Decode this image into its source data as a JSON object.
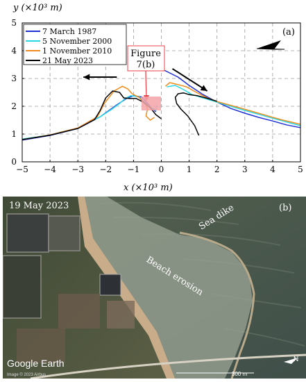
{
  "chart_data": {
    "type": "line",
    "xlabel": "x (×10³ m)",
    "ylabel": "y (×10³ m)",
    "xlim": [
      -5,
      5
    ],
    "ylim": [
      0,
      5
    ],
    "xticks": [
      -5,
      -4,
      -3,
      -2,
      -1,
      0,
      1,
      2,
      3,
      4,
      5
    ],
    "yticks": [
      0,
      1,
      2,
      3,
      4,
      5
    ],
    "xtick_labels": [
      "−5",
      "−4",
      "−3",
      "−2",
      "−1",
      "0",
      "1",
      "2",
      "3",
      "4",
      "5"
    ],
    "ytick_labels": [
      "0",
      "1",
      "2",
      "3",
      "4",
      "5"
    ],
    "grid": true,
    "legend_position": "top-left",
    "panel_label": "(a)",
    "annotation": {
      "text_line1": "Figure",
      "text_line2": "7(b)",
      "target_x": -0.3,
      "target_y": 2.0,
      "box_color": "#f4a3a8"
    },
    "series": [
      {
        "name": "7 March 1987",
        "color": "#1f2fd6",
        "segments": [
          [
            [
              -5,
              0.78
            ],
            [
              -4,
              0.95
            ],
            [
              -3,
              1.2
            ],
            [
              -2.2,
              1.62
            ],
            [
              -1.6,
              2.05
            ],
            [
              -1.25,
              2.28
            ],
            [
              -1,
              2.38
            ],
            [
              -0.7,
              2.33
            ],
            [
              -0.45,
              2.05
            ],
            [
              -0.2,
              1.8
            ]
          ],
          [
            [
              0.1,
              3.3
            ],
            [
              0.6,
              3.05
            ],
            [
              1,
              2.75
            ],
            [
              1.5,
              2.42
            ],
            [
              2,
              2.15
            ],
            [
              2.5,
              1.92
            ],
            [
              3,
              1.75
            ],
            [
              3.5,
              1.6
            ],
            [
              4,
              1.47
            ],
            [
              4.5,
              1.33
            ],
            [
              5,
              1.23
            ]
          ]
        ]
      },
      {
        "name": "5 November 2000",
        "color": "#27d9e4",
        "segments": [
          [
            [
              -5,
              0.82
            ],
            [
              -4,
              0.97
            ],
            [
              -3,
              1.22
            ],
            [
              -2.2,
              1.62
            ],
            [
              -1.8,
              1.88
            ],
            [
              -1.5,
              2.1
            ],
            [
              -1.3,
              2.28
            ],
            [
              -1.1,
              2.38
            ],
            [
              -0.8,
              2.34
            ],
            [
              -0.55,
              2.1
            ],
            [
              -0.35,
              1.95
            ],
            [
              -0.2,
              1.85
            ],
            [
              -0.15,
              2.05
            ]
          ],
          [
            [
              0.2,
              2.7
            ],
            [
              0.5,
              2.75
            ],
            [
              0.8,
              2.6
            ],
            [
              1.1,
              2.42
            ],
            [
              1.5,
              2.3
            ],
            [
              2,
              2.15
            ],
            [
              3,
              1.85
            ],
            [
              4,
              1.57
            ],
            [
              5,
              1.3
            ]
          ]
        ]
      },
      {
        "name": "1 November 2010",
        "color": "#f08c1d",
        "segments": [
          [
            [
              -5,
              0.8
            ],
            [
              -4,
              0.97
            ],
            [
              -3,
              1.22
            ],
            [
              -2.3,
              1.62
            ],
            [
              -2.05,
              2.1
            ],
            [
              -1.7,
              2.55
            ],
            [
              -1.4,
              2.72
            ],
            [
              -1.2,
              2.62
            ],
            [
              -1.05,
              2.45
            ],
            [
              -0.8,
              2.32
            ],
            [
              -0.55,
              2.05
            ],
            [
              -0.5,
              1.9
            ],
            [
              -0.55,
              1.65
            ],
            [
              -0.4,
              1.5
            ],
            [
              -0.25,
              1.6
            ]
          ],
          [
            [
              0.15,
              2.72
            ],
            [
              0.3,
              2.85
            ],
            [
              0.6,
              2.78
            ],
            [
              0.9,
              2.7
            ],
            [
              1.3,
              2.48
            ],
            [
              1.7,
              2.28
            ],
            [
              2,
              2.17
            ],
            [
              2.8,
              1.95
            ],
            [
              3.6,
              1.72
            ],
            [
              4.3,
              1.52
            ],
            [
              5,
              1.35
            ]
          ]
        ]
      },
      {
        "name": "21 May 2023",
        "color": "#000000",
        "segments": [
          [
            [
              -5,
              0.8
            ],
            [
              -4,
              0.96
            ],
            [
              -3,
              1.2
            ],
            [
              -2.4,
              1.52
            ],
            [
              -2.2,
              1.85
            ],
            [
              -2,
              2.3
            ],
            [
              -1.75,
              2.55
            ],
            [
              -1.5,
              2.5
            ],
            [
              -1.35,
              2.3
            ],
            [
              -1.15,
              2.28
            ],
            [
              -0.9,
              2.28
            ],
            [
              -0.65,
              2.15
            ],
            [
              -0.4,
              1.95
            ],
            [
              -0.2,
              1.7
            ],
            [
              0,
              1.55
            ]
          ],
          [
            [
              1.35,
              0.95
            ],
            [
              1.2,
              1.3
            ],
            [
              0.95,
              1.65
            ],
            [
              0.7,
              1.9
            ],
            [
              0.55,
              2.1
            ],
            [
              0.5,
              2.32
            ],
            [
              0.6,
              2.45
            ],
            [
              0.8,
              2.48
            ],
            [
              1,
              2.42
            ],
            [
              1.3,
              2.38
            ],
            [
              1.6,
              2.3
            ],
            [
              2,
              2.18
            ]
          ]
        ]
      }
    ],
    "arrows": [
      {
        "from": [
          -1.6,
          3.05
        ],
        "to": [
          -2.8,
          3.05
        ]
      },
      {
        "from": [
          0.4,
          3.35
        ],
        "to": [
          1.65,
          2.55
        ]
      }
    ]
  },
  "photo": {
    "date_label": "19 May 2023",
    "panel_label": "(b)",
    "labels": {
      "sea_dike": "Sea dike",
      "beach_erosion": "Beach erosion"
    },
    "watermark": "Google Earth",
    "credit": "Image © 2023 Airbus",
    "scale_bar": "300 m",
    "north": "N"
  },
  "colors": {
    "sea": "#445a4e",
    "land": "#4d5a3e",
    "sand": "#c0a785",
    "surf": "#b4c0ad"
  }
}
